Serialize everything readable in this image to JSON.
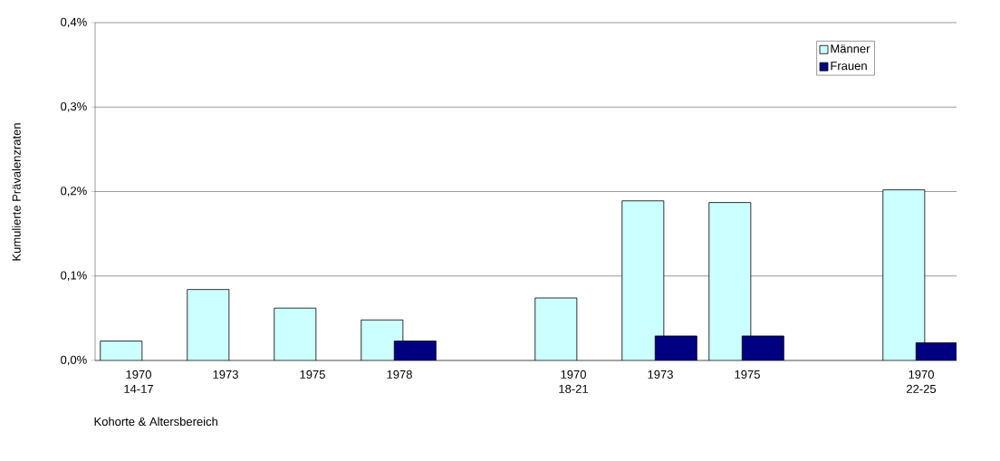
{
  "chart_data": {
    "type": "bar",
    "xlabel": "Kohorte & Altersbereich",
    "ylabel": "Kumulierte Prävalenzraten",
    "categories": [
      "1970 14-17",
      "1973",
      "1975",
      "1978",
      null,
      "1970 18-21",
      "1973",
      "1975",
      null,
      "1970 22-25"
    ],
    "series": [
      {
        "name": "Männer",
        "color": "#ccffff",
        "values": [
          0.023,
          0.084,
          0.062,
          0.048,
          null,
          0.074,
          0.189,
          0.187,
          null,
          0.202
        ]
      },
      {
        "name": "Frauen",
        "color": "#000080",
        "values": [
          null,
          null,
          null,
          0.023,
          null,
          null,
          0.029,
          0.029,
          null,
          0.021
        ]
      }
    ],
    "ylim": [
      0,
      0.4
    ],
    "yticks": [
      {
        "value": 0,
        "label": "0,0%"
      },
      {
        "value": 0.1,
        "label": "0,1%"
      },
      {
        "value": 0.2,
        "label": "0,2%"
      },
      {
        "value": 0.3,
        "label": "0,3%"
      },
      {
        "value": 0.4,
        "label": "0,4%"
      }
    ],
    "grid": "y",
    "legend": "top right"
  }
}
